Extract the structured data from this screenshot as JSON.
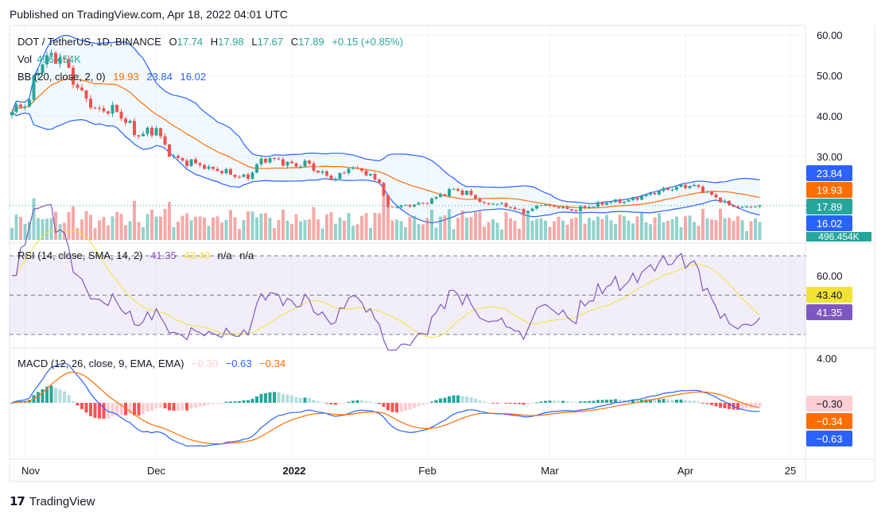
{
  "header": {
    "published": "Published on TradingView.com, Apr 18, 2022 04:01 UTC"
  },
  "legend": {
    "symbol": "DOT / TetherUS, 1D, BINANCE",
    "o_label": "O",
    "o": "17.74",
    "h_label": "H",
    "h": "17.98",
    "l_label": "L",
    "l": "17.67",
    "c_label": "C",
    "c": "17.89",
    "change": "+0.15 (+0.85%)",
    "vol_label": "Vol",
    "vol": "496.454K",
    "bb_label": "BB (20, close, 2, 0)",
    "bb_basis": "19.93",
    "bb_upper": "23.84",
    "bb_lower": "16.02",
    "rsi_label": "RSI (14, close, SMA, 14, 2)",
    "rsi": "41.35",
    "rsi_ma": "43.40",
    "rsi_na1": "n/a",
    "rsi_na2": "n/a",
    "macd_label": "MACD (12, 26, close, 9, EMA, EMA)",
    "macd_hist": "−0.30",
    "macd": "−0.63",
    "macd_signal": "−0.34"
  },
  "price_axis": [
    "60.00",
    "50.00",
    "40.00",
    "30.00"
  ],
  "price_badges": [
    {
      "text": "23.84",
      "value": 23.84,
      "color": "#2962ff"
    },
    {
      "text": "19.93",
      "value": 19.93,
      "color": "#ff6d00"
    },
    {
      "text": "17.89",
      "value": 17.89,
      "color": "#26a69a"
    },
    {
      "text": "16.02",
      "value": 16.02,
      "color": "#2962ff"
    }
  ],
  "volume_badge": "496.454K",
  "rsi_axis": [
    "60.00"
  ],
  "rsi_badges": [
    {
      "text": "43.40",
      "value": 43.4,
      "color": "#f2e233",
      "fg": "#131722"
    },
    {
      "text": "41.35",
      "value": 41.35,
      "color": "#7e57c2",
      "fg": "#ffffff"
    }
  ],
  "macd_axis": [
    "4.00"
  ],
  "macd_badges": [
    {
      "text": "−0.30",
      "color": "#ffcdd2",
      "fg": "#131722"
    },
    {
      "text": "−0.34",
      "color": "#ff6d00",
      "fg": "#ffffff"
    },
    {
      "text": "−0.63",
      "color": "#2962ff",
      "fg": "#ffffff"
    }
  ],
  "time_axis": [
    {
      "label": "Nov",
      "day": 3,
      "bold": false
    },
    {
      "label": "Dec",
      "day": 33,
      "bold": false
    },
    {
      "label": "2022",
      "day": 64,
      "bold": true
    },
    {
      "label": "Feb",
      "day": 95,
      "bold": false
    },
    {
      "label": "Mar",
      "day": 123,
      "bold": false
    },
    {
      "label": "Apr",
      "day": 154,
      "bold": false
    },
    {
      "label": "25",
      "day": 178,
      "bold": false
    }
  ],
  "footer": {
    "brand": "TradingView"
  },
  "colors": {
    "up": "#26a69a",
    "down": "#ef5350",
    "bb_basis": "#ff6d00",
    "bb_band": "#2962ff",
    "rsi": "#7e57c2",
    "rsi_ma": "#f2e233"
  },
  "chart_data": {
    "type": "candlestick",
    "title": "DOT / TetherUS, 1D, BINANCE",
    "start_date": "2021-10-29",
    "end_date": "2022-04-18",
    "close_anchors_day_value": [
      [
        0,
        41
      ],
      [
        4,
        44
      ],
      [
        5,
        50
      ],
      [
        8,
        55
      ],
      [
        12,
        54
      ],
      [
        15,
        47
      ],
      [
        19,
        42
      ],
      [
        24,
        41
      ],
      [
        29,
        35
      ],
      [
        33,
        37
      ],
      [
        36,
        30
      ],
      [
        39,
        29
      ],
      [
        45,
        27.5
      ],
      [
        50,
        25.5
      ],
      [
        54,
        24.5
      ],
      [
        57,
        29.5
      ],
      [
        60,
        29.5
      ],
      [
        65,
        27.5
      ],
      [
        67,
        29
      ],
      [
        70,
        26
      ],
      [
        74,
        24.5
      ],
      [
        77,
        27
      ],
      [
        80,
        26.5
      ],
      [
        84,
        23.5
      ],
      [
        86,
        17.6
      ],
      [
        90,
        18
      ],
      [
        94,
        18.5
      ],
      [
        97,
        20
      ],
      [
        101,
        22
      ],
      [
        105,
        20.5
      ],
      [
        108,
        18.5
      ],
      [
        112,
        18.5
      ],
      [
        117,
        16
      ],
      [
        121,
        18
      ],
      [
        125,
        17.3
      ],
      [
        128,
        16.7
      ],
      [
        132,
        17.6
      ],
      [
        136,
        18.6
      ],
      [
        141,
        19.2
      ],
      [
        145,
        20.6
      ],
      [
        148,
        21.5
      ],
      [
        152,
        22.5
      ],
      [
        156,
        23
      ],
      [
        160,
        20.6
      ],
      [
        164,
        18
      ],
      [
        167,
        17.6
      ],
      [
        171,
        17.89
      ]
    ],
    "ylim": [
      14,
      62
    ],
    "rsi_ylim": [
      25,
      75
    ],
    "macd_ylim": [
      -4.3,
      4.3
    ]
  }
}
